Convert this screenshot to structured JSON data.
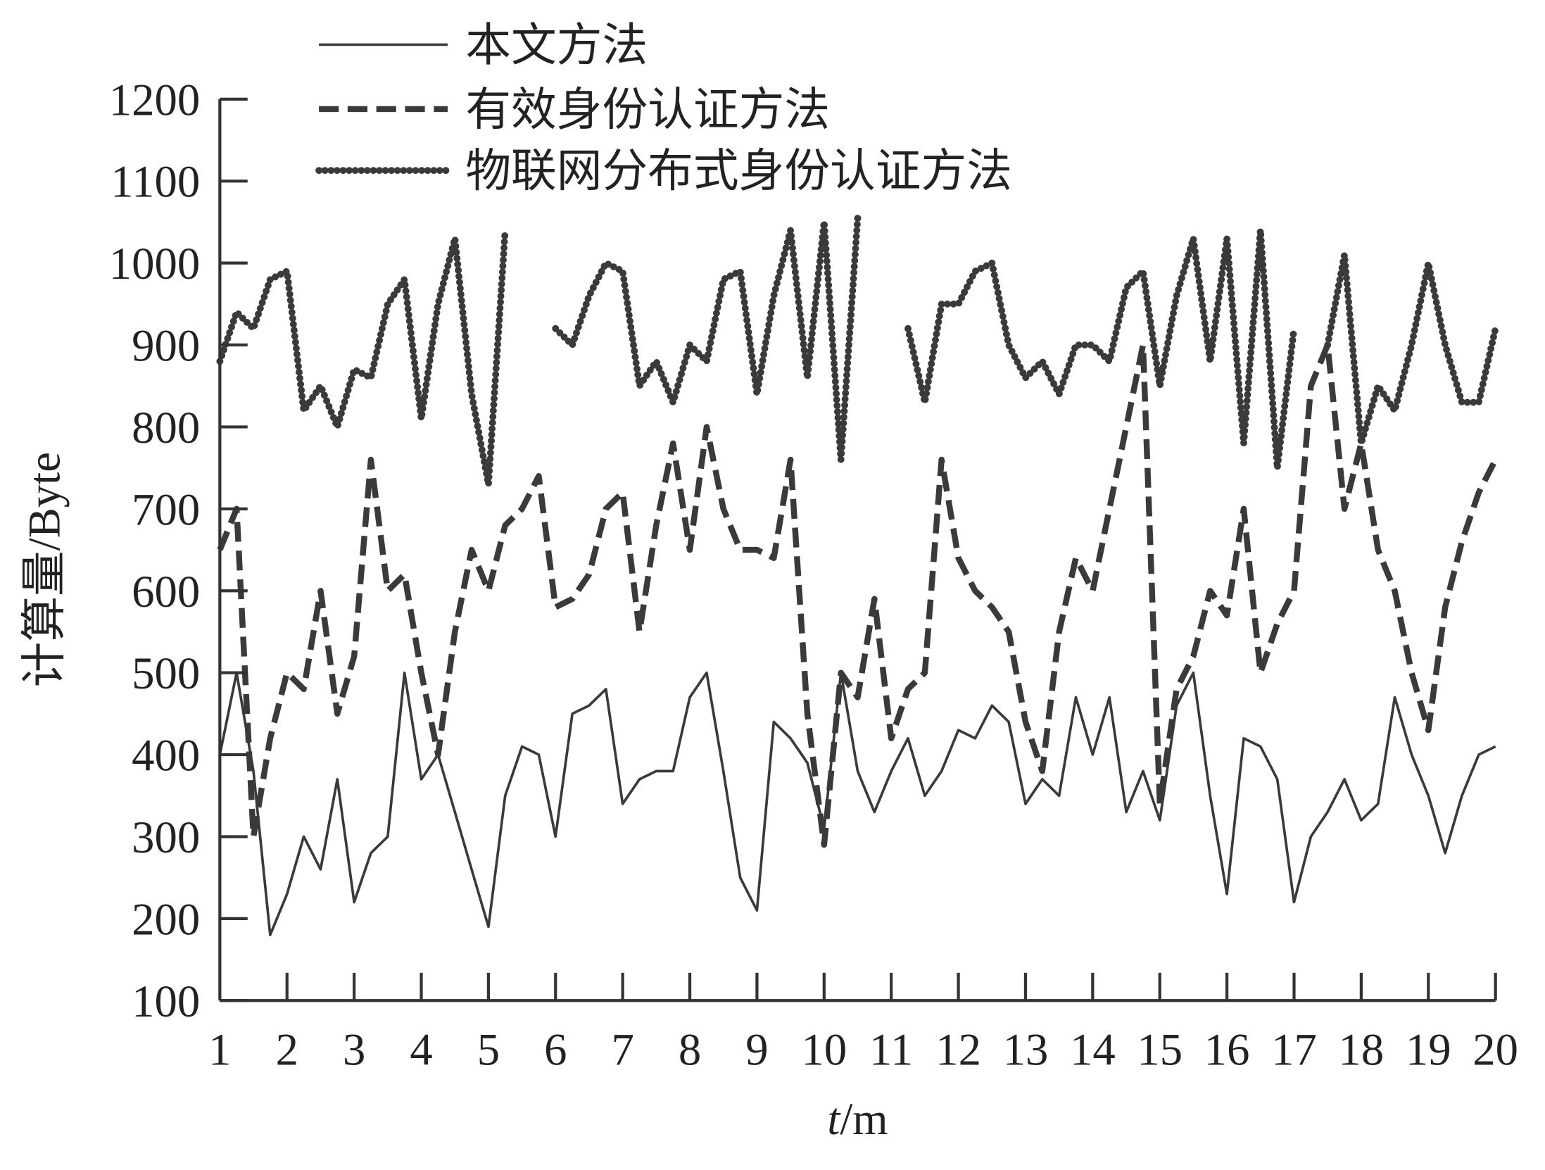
{
  "chart_data": {
    "type": "line",
    "title": "",
    "xlabel_italic": "t",
    "xlabel_rest": "/m",
    "ylabel": "计算量/Byte",
    "xlim": [
      1,
      20
    ],
    "ylim": [
      100,
      1200
    ],
    "xticks": [
      1,
      2,
      3,
      4,
      5,
      6,
      7,
      8,
      9,
      10,
      11,
      12,
      13,
      14,
      15,
      16,
      17,
      18,
      19,
      20
    ],
    "yticks": [
      100,
      200,
      300,
      400,
      500,
      600,
      700,
      800,
      900,
      1000,
      1100,
      1200
    ],
    "grid": false,
    "legend_position": "top",
    "x": [
      1,
      1.25,
      1.5,
      1.75,
      2,
      2.25,
      2.5,
      2.75,
      3,
      3.25,
      3.5,
      3.75,
      4,
      4.25,
      4.5,
      4.75,
      5,
      5.25,
      5.5,
      5.75,
      6,
      6.25,
      6.5,
      6.75,
      7,
      7.25,
      7.5,
      7.75,
      8,
      8.25,
      8.5,
      8.75,
      9,
      9.25,
      9.5,
      9.75,
      10,
      10.25,
      10.5,
      10.75,
      11,
      11.25,
      11.5,
      11.75,
      12,
      12.25,
      12.5,
      12.75,
      13,
      13.25,
      13.5,
      13.75,
      14,
      14.25,
      14.5,
      14.75,
      15,
      15.25,
      15.5,
      15.75,
      16,
      16.25,
      16.5,
      16.75,
      17,
      17.25,
      17.5,
      17.75,
      18,
      18.25,
      18.5,
      18.75,
      19,
      19.25,
      19.5,
      19.75,
      20
    ],
    "series": [
      {
        "name": "本文方法",
        "style": "solid",
        "color": "#3a3a3a",
        "values": [
          400,
          500,
          380,
          180,
          230,
          300,
          260,
          370,
          220,
          280,
          300,
          500,
          370,
          400,
          330,
          260,
          190,
          350,
          410,
          400,
          300,
          450,
          460,
          480,
          340,
          370,
          380,
          380,
          470,
          500,
          380,
          250,
          210,
          440,
          420,
          390,
          310,
          500,
          380,
          330,
          380,
          420,
          350,
          380,
          430,
          420,
          460,
          440,
          340,
          370,
          350,
          470,
          400,
          470,
          330,
          380,
          320,
          460,
          500,
          350,
          230,
          420,
          410,
          370,
          220,
          300,
          330,
          370,
          320,
          340,
          470,
          400,
          350,
          280,
          350,
          400,
          410
        ]
      },
      {
        "name": "有效身份认证方法",
        "style": "dashed",
        "color": "#3a3a3a",
        "values": [
          650,
          700,
          300,
          420,
          500,
          480,
          600,
          450,
          520,
          760,
          600,
          620,
          500,
          400,
          550,
          650,
          600,
          680,
          700,
          740,
          580,
          590,
          620,
          700,
          720,
          550,
          680,
          780,
          650,
          800,
          700,
          650,
          650,
          640,
          760,
          450,
          290,
          500,
          470,
          590,
          420,
          480,
          500,
          760,
          640,
          600,
          580,
          550,
          440,
          380,
          550,
          640,
          600,
          700,
          800,
          900,
          340,
          480,
          520,
          600,
          570,
          700,
          500,
          560,
          600,
          850,
          900,
          700,
          780,
          650,
          600,
          500,
          430,
          580,
          660,
          720,
          760
        ]
      },
      {
        "name": "物联网分布式身份认证方法",
        "style": "dotted",
        "color": "#3a3a3a",
        "values": [
          880,
          940,
          920,
          980,
          990,
          820,
          850,
          800,
          870,
          860,
          950,
          980,
          810,
          950,
          1030,
          840,
          730,
          1040,
          null,
          null,
          920,
          900,
          960,
          1000,
          990,
          850,
          880,
          830,
          900,
          880,
          980,
          990,
          840,
          960,
          1040,
          860,
          1050,
          760,
          1055,
          null,
          null,
          920,
          830,
          950,
          950,
          990,
          1000,
          900,
          860,
          880,
          840,
          900,
          900,
          880,
          970,
          990,
          850,
          960,
          1030,
          880,
          1030,
          780,
          1040,
          750,
          920,
          null,
          900,
          1010,
          780,
          850,
          820,
          900,
          1000,
          900,
          830,
          830,
          920
        ]
      }
    ]
  }
}
